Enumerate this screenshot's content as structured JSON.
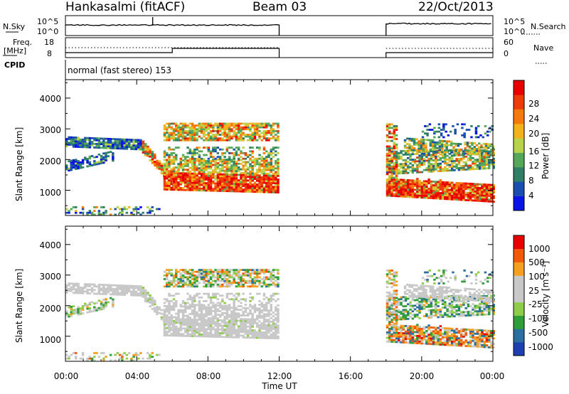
{
  "header": {
    "station": "Hankasalmi (fitACF)",
    "beam": "Beam 03",
    "date": "22/Oct/2013"
  },
  "strips": {
    "nsky_label": "N.Sky",
    "nsky_ticks": [
      "10^5",
      "10^0"
    ],
    "nsearch_label": "N.Search",
    "nsearch_ticks": [
      "10^5",
      "10^0"
    ],
    "freq_label": "Freq.",
    "freq_unit": "[MHz]",
    "freq_ticks": [
      "18",
      "8"
    ],
    "nave_label": "Nave",
    "nave_ticks": [
      "60",
      "0"
    ],
    "cpid_label": "CPID",
    "cpid_text": "normal (fast stereo) 153"
  },
  "colors": {
    "power_scale": [
      "#0a14e6",
      "#1a4fb0",
      "#2e7f66",
      "#55a85a",
      "#b8d24a",
      "#f2b21c",
      "#f57a0d",
      "#ee3b0a",
      "#e80000"
    ],
    "velocity_scale": [
      "#e80000",
      "#f25a0a",
      "#f5a020",
      "#c8c8c8",
      "#c8c8c8",
      "#8fcc4a",
      "#2e9e3a",
      "#2a6fa0",
      "#1e3fb0"
    ]
  },
  "chart_data": [
    {
      "type": "heatmap",
      "name": "power-panel",
      "xlabel": "Time UT",
      "ylabel": "Slant Range [km]",
      "x_ticks": [
        "00:00",
        "04:00",
        "08:00",
        "12:00",
        "16:00",
        "20:00",
        "00:00"
      ],
      "x_range_hours": [
        0,
        24
      ],
      "y_ticks": [
        1000,
        2000,
        3000,
        4000
      ],
      "y_range_km": [
        180,
        4600
      ],
      "colorbar_label": "Power [dB]",
      "colorbar_ticks": [
        4,
        8,
        12,
        16,
        20,
        24,
        28
      ],
      "colorbar_range": [
        0,
        30
      ],
      "data_gaps_hours": [
        [
          12,
          18
        ]
      ]
    },
    {
      "type": "heatmap",
      "name": "velocity-panel",
      "xlabel": "Time UT",
      "ylabel": "Slant Range [km]",
      "x_ticks": [
        "00:00",
        "04:00",
        "08:00",
        "12:00",
        "16:00",
        "20:00",
        "00:00"
      ],
      "x_range_hours": [
        0,
        24
      ],
      "y_ticks": [
        1000,
        2000,
        3000,
        4000
      ],
      "y_range_km": [
        180,
        4600
      ],
      "colorbar_label": "Velocity [m s⁻¹]",
      "colorbar_ticks": [
        1000,
        500,
        100,
        25,
        -25,
        -100,
        -500,
        -1000
      ],
      "data_gaps_hours": [
        [
          12,
          18
        ]
      ]
    }
  ]
}
